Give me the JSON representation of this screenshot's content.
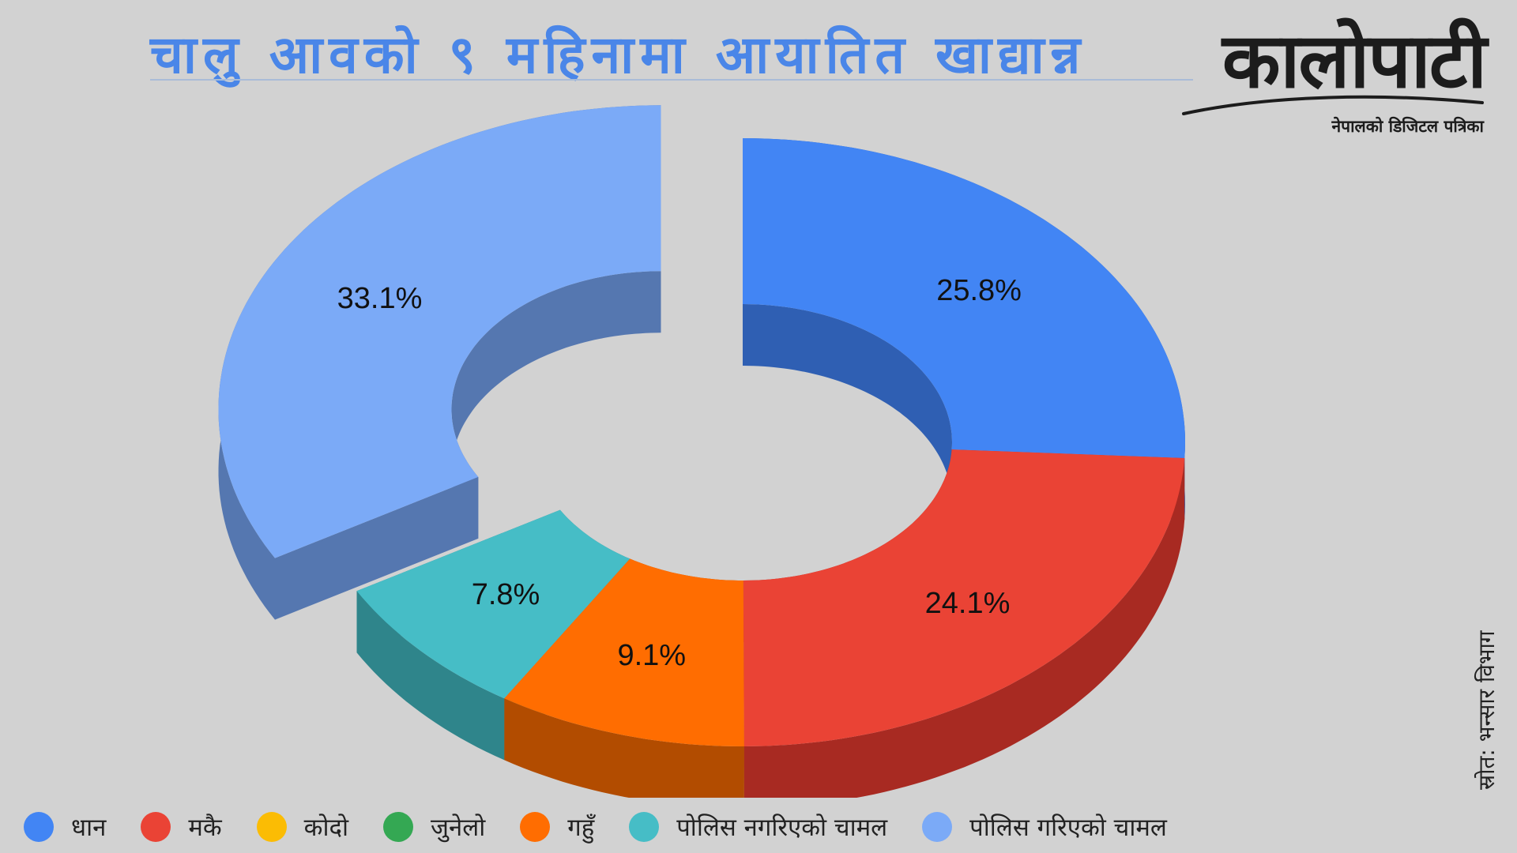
{
  "header": {
    "title": "चालु आवको ९ महिनामा आयातित खाद्यान्न"
  },
  "logo": {
    "name": "कालोपाटी",
    "tagline": "नेपालको डिजिटल पत्रिका"
  },
  "source": "स्रोत: भन्सार विभाग",
  "chart_data": {
    "type": "pie",
    "variant": "3d-donut-exploded",
    "title": "चालु आवको ९ महिनामा आयातित खाद्यान्न",
    "legend_position": "bottom",
    "unit": "%",
    "series": [
      {
        "name": "धान",
        "value": 25.8,
        "label": "25.8%",
        "color": "#4285f4",
        "side_color": "#2f5fb3"
      },
      {
        "name": "मकै",
        "value": 24.1,
        "label": "24.1%",
        "color": "#ea4335",
        "side_color": "#a82a22"
      },
      {
        "name": "कोदो",
        "value": 0,
        "label": "",
        "color": "#fbbc04",
        "side_color": "#b08500"
      },
      {
        "name": "जुनेलो",
        "value": 0,
        "label": "",
        "color": "#34a853",
        "side_color": "#23753a"
      },
      {
        "name": "गहुँ",
        "value": 9.1,
        "label": "9.1%",
        "color": "#ff6d01",
        "side_color": "#b24c00"
      },
      {
        "name": "पोलिस नगरिएको चामल",
        "value": 7.8,
        "label": "7.8%",
        "color": "#46bdc6",
        "side_color": "#2f858b"
      },
      {
        "name": "पोलिस गरिएको चामल",
        "value": 33.1,
        "label": "33.1%",
        "color": "#7baaf7",
        "side_color": "#5577b0"
      }
    ]
  }
}
